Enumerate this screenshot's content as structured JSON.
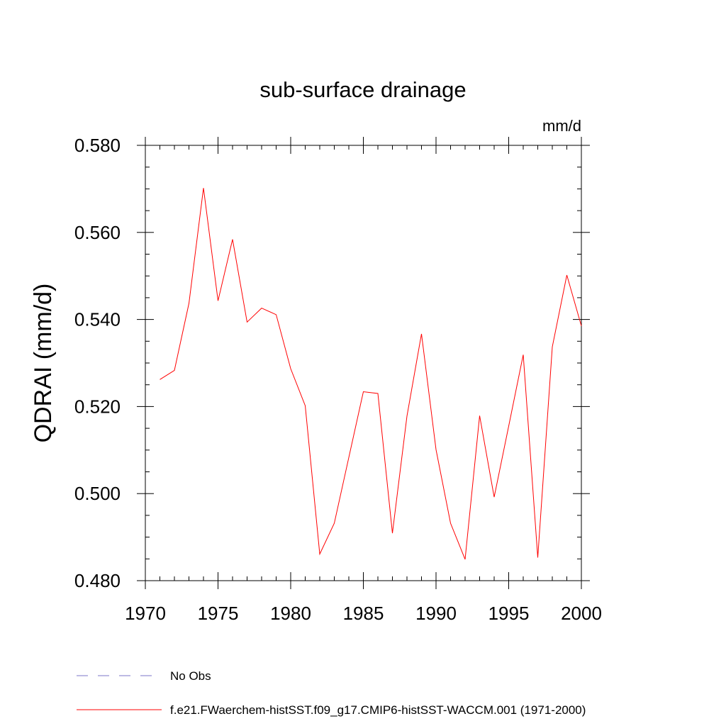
{
  "chart_data": {
    "type": "line",
    "title": "sub-surface drainage",
    "units_label": "mm/d",
    "ylabel": "QDRAI  (mm/d)",
    "xlabel": "",
    "xlim": [
      1970,
      2000
    ],
    "ylim": [
      0.48,
      0.58
    ],
    "x_ticks": [
      1970,
      1975,
      1980,
      1985,
      1990,
      1995,
      2000
    ],
    "x_tick_labels": [
      "1970",
      "1975",
      "1980",
      "1985",
      "1990",
      "1995",
      "2000"
    ],
    "y_ticks": [
      0.48,
      0.5,
      0.52,
      0.54,
      0.56,
      0.58
    ],
    "y_tick_labels": [
      "0.480",
      "0.500",
      "0.520",
      "0.540",
      "0.560",
      "0.580"
    ],
    "series": [
      {
        "name": "f.e21.FWaerchem-histSST.f09_g17.CMIP6-histSST-WACCM.001 (1971-2000)",
        "color": "#ff0000",
        "x": [
          1971,
          1972,
          1973,
          1974,
          1975,
          1976,
          1977,
          1978,
          1979,
          1980,
          1981,
          1982,
          1983,
          1984,
          1985,
          1986,
          1987,
          1988,
          1989,
          1990,
          1991,
          1992,
          1993,
          1994,
          1995,
          1996,
          1997,
          1998,
          1999,
          2000
        ],
        "values": [
          0.5262,
          0.5283,
          0.5437,
          0.5702,
          0.5443,
          0.5584,
          0.5394,
          0.5426,
          0.5411,
          0.5287,
          0.5202,
          0.4861,
          0.4932,
          0.5083,
          0.5234,
          0.523,
          0.4909,
          0.5178,
          0.5367,
          0.5101,
          0.4932,
          0.4849,
          0.5179,
          0.4992,
          0.5155,
          0.5319,
          0.4853,
          0.5337,
          0.5502,
          0.5385
        ]
      }
    ],
    "legend": {
      "placement": "bottom",
      "entries": [
        {
          "label": "No Obs",
          "color": "#7b74c8",
          "dash": "dashed"
        },
        {
          "label": "f.e21.FWaerchem-histSST.f09_g17.CMIP6-histSST-WACCM.001 (1971-2000)",
          "color": "#ff0000",
          "dash": "solid"
        }
      ]
    },
    "grid": false
  }
}
